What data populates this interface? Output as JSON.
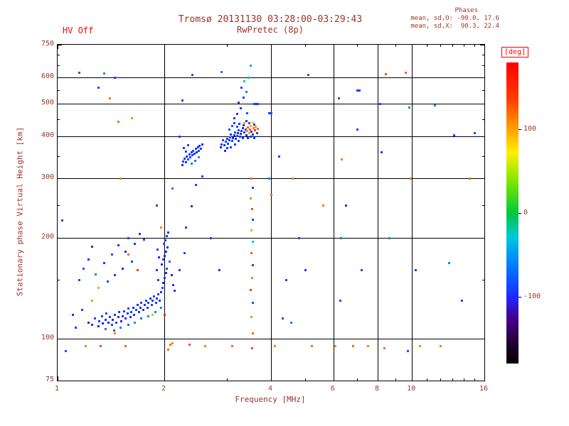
{
  "header": {
    "hv_label": "HV Off",
    "phases": {
      "heading": "Phases",
      "line_o": "mean, sd,O: -90.0, 17.6",
      "line_x": "mean, sd,X:  90.3, 22.4"
    }
  },
  "colors": {
    "background": "#ffffff",
    "grid": "#000000",
    "title_text": "#9a3428",
    "hv_text": "#ff0000",
    "deg_label": "#ff0000"
  },
  "chart_data": {
    "type": "scatter",
    "title": "Tromsø 20131130 03:28:00-03:29:43",
    "subtitle": "RwPretec (8p)",
    "xlabel": "Frequency [MHz]",
    "ylabel": "Stationary phase Virtual Height [km]",
    "x_scale": "log",
    "x_range": [
      1,
      16
    ],
    "x_tick_labels": [
      1,
      2,
      4,
      6,
      8,
      10,
      16
    ],
    "x_gridlines": [
      2,
      4,
      6,
      8,
      10
    ],
    "y_scale": "log",
    "y_range": [
      75,
      750
    ],
    "y_tick_labels": [
      750,
      600,
      500,
      400,
      300,
      200,
      100,
      75
    ],
    "y_gridlines": [
      100,
      200,
      300,
      400,
      500,
      600
    ],
    "grid": true,
    "color_scale": {
      "label": "[deg]",
      "min": -180,
      "max": 180,
      "ticks": [
        100,
        0,
        -100
      ],
      "colormap": [
        [
          0.0,
          "#000000"
        ],
        [
          0.08,
          "#28003c"
        ],
        [
          0.15,
          "#46008c"
        ],
        [
          0.22,
          "#1e28ff"
        ],
        [
          0.32,
          "#0078ff"
        ],
        [
          0.42,
          "#00c8dc"
        ],
        [
          0.5,
          "#00c83c"
        ],
        [
          0.6,
          "#78e600"
        ],
        [
          0.7,
          "#fff000"
        ],
        [
          0.78,
          "#ffa000"
        ],
        [
          0.88,
          "#ff3c00"
        ],
        [
          1.0,
          "#ff0000"
        ]
      ]
    },
    "point_format": [
      "frequency_MHz",
      "virtual_height_km",
      "phase_deg"
    ],
    "points": [
      [
        1.22,
        112,
        -100
      ],
      [
        1.25,
        110,
        -95
      ],
      [
        1.27,
        115,
        -88
      ],
      [
        1.3,
        109,
        -102
      ],
      [
        1.31,
        113,
        -92
      ],
      [
        1.33,
        117,
        -85
      ],
      [
        1.34,
        111,
        -108
      ],
      [
        1.36,
        114,
        -96
      ],
      [
        1.37,
        119,
        -90
      ],
      [
        1.39,
        112,
        -100
      ],
      [
        1.4,
        116,
        -94
      ],
      [
        1.42,
        110,
        -86
      ],
      [
        1.43,
        114,
        -103
      ],
      [
        1.45,
        118,
        -95
      ],
      [
        1.46,
        112,
        -89
      ],
      [
        1.48,
        116,
        -99
      ],
      [
        1.49,
        120,
        -92
      ],
      [
        1.51,
        113,
        -105
      ],
      [
        1.52,
        117,
        -96
      ],
      [
        1.54,
        121,
        -88
      ],
      [
        1.55,
        115,
        -100
      ],
      [
        1.57,
        119,
        -93
      ],
      [
        1.58,
        123,
        -86
      ],
      [
        1.6,
        116,
        -98
      ],
      [
        1.61,
        120,
        -91
      ],
      [
        1.63,
        124,
        -103
      ],
      [
        1.64,
        118,
        -95
      ],
      [
        1.66,
        122,
        -88
      ],
      [
        1.68,
        126,
        -97
      ],
      [
        1.69,
        120,
        -92
      ],
      [
        1.71,
        124,
        -100
      ],
      [
        1.72,
        128,
        -87
      ],
      [
        1.74,
        122,
        -94
      ],
      [
        1.76,
        126,
        -99
      ],
      [
        1.77,
        130,
        -90
      ],
      [
        1.79,
        124,
        -96
      ],
      [
        1.8,
        128,
        -89
      ],
      [
        1.82,
        132,
        -101
      ],
      [
        1.84,
        126,
        -93
      ],
      [
        1.85,
        130,
        -98
      ],
      [
        1.87,
        134,
        -91
      ],
      [
        1.89,
        128,
        -95
      ],
      [
        1.9,
        132,
        -100
      ],
      [
        1.92,
        136,
        -88
      ],
      [
        1.94,
        130,
        -97
      ],
      [
        1.5,
        108,
        -60
      ],
      [
        1.58,
        110,
        -70
      ],
      [
        1.65,
        112,
        -55
      ],
      [
        1.72,
        115,
        -65
      ],
      [
        1.8,
        117,
        -58
      ],
      [
        1.88,
        120,
        -62
      ],
      [
        1.95,
        124,
        -55
      ],
      [
        1.44,
        106,
        -75
      ],
      [
        1.36,
        107,
        -68
      ],
      [
        1.95,
        138,
        -95
      ],
      [
        1.97,
        142,
        -88
      ],
      [
        1.98,
        147,
        -100
      ],
      [
        2.0,
        152,
        -92
      ],
      [
        2.02,
        157,
        -96
      ],
      [
        2.03,
        162,
        -85
      ],
      [
        1.96,
        167,
        -98
      ],
      [
        1.98,
        172,
        -90
      ],
      [
        2.0,
        177,
        -102
      ],
      [
        2.02,
        182,
        -94
      ],
      [
        2.04,
        187,
        -97
      ],
      [
        1.99,
        192,
        -89
      ],
      [
        2.01,
        197,
        -101
      ],
      [
        2.03,
        202,
        -93
      ],
      [
        2.05,
        207,
        -96
      ],
      [
        2.07,
        170,
        -70
      ],
      [
        2.09,
        155,
        -105
      ],
      [
        2.11,
        145,
        -92
      ],
      [
        2.13,
        139,
        -99
      ],
      [
        1.92,
        150,
        -90
      ],
      [
        1.9,
        160,
        -95
      ],
      [
        1.93,
        175,
        -100
      ],
      [
        1.91,
        185,
        -88
      ],
      [
        1.12,
        108,
        -95
      ],
      [
        1.15,
        150,
        -90
      ],
      [
        1.18,
        162,
        -85
      ],
      [
        1.22,
        172,
        -95
      ],
      [
        1.25,
        188,
        -100
      ],
      [
        1.17,
        122,
        -88
      ],
      [
        1.1,
        118,
        -100
      ],
      [
        1.28,
        156,
        -60
      ],
      [
        1.35,
        168,
        -92
      ],
      [
        1.42,
        178,
        -85
      ],
      [
        1.48,
        190,
        -95
      ],
      [
        1.55,
        182,
        -100
      ],
      [
        1.62,
        170,
        -90
      ],
      [
        1.58,
        200,
        -88
      ],
      [
        1.65,
        192,
        -96
      ],
      [
        1.7,
        205,
        -92
      ],
      [
        1.75,
        198,
        -85
      ],
      [
        1.52,
        162,
        -100
      ],
      [
        1.45,
        155,
        -94
      ],
      [
        1.38,
        148,
        -89
      ],
      [
        1.32,
        95,
        130
      ],
      [
        1.45,
        104,
        110
      ],
      [
        1.58,
        178,
        120
      ],
      [
        1.3,
        142,
        100
      ],
      [
        1.68,
        160,
        140
      ],
      [
        1.85,
        118,
        95
      ],
      [
        2.0,
        118,
        150
      ],
      [
        1.25,
        130,
        105
      ],
      [
        2.08,
        96,
        120
      ],
      [
        1.95,
        215,
        110
      ],
      [
        2.24,
        330,
        -95
      ],
      [
        2.26,
        338,
        -88
      ],
      [
        2.28,
        345,
        -100
      ],
      [
        2.3,
        336,
        -92
      ],
      [
        2.31,
        350,
        -96
      ],
      [
        2.33,
        342,
        -85
      ],
      [
        2.35,
        355,
        -98
      ],
      [
        2.36,
        347,
        -90
      ],
      [
        2.38,
        360,
        -102
      ],
      [
        2.4,
        352,
        -94
      ],
      [
        2.41,
        364,
        -87
      ],
      [
        2.43,
        356,
        -99
      ],
      [
        2.45,
        368,
        -91
      ],
      [
        2.46,
        360,
        -103
      ],
      [
        2.48,
        372,
        -95
      ],
      [
        2.5,
        364,
        -88
      ],
      [
        2.51,
        376,
        -97
      ],
      [
        2.53,
        368,
        -92
      ],
      [
        2.55,
        380,
        -100
      ],
      [
        2.38,
        332,
        -60
      ],
      [
        2.44,
        340,
        -70
      ],
      [
        2.5,
        348,
        -55
      ],
      [
        2.3,
        362,
        -90
      ],
      [
        2.27,
        370,
        -95
      ],
      [
        2.33,
        378,
        -88
      ],
      [
        2.95,
        378,
        -95
      ],
      [
        2.98,
        386,
        -88
      ],
      [
        3.0,
        394,
        -100
      ],
      [
        3.02,
        382,
        -92
      ],
      [
        3.04,
        390,
        -96
      ],
      [
        3.06,
        398,
        -85
      ],
      [
        3.08,
        406,
        -98
      ],
      [
        3.1,
        388,
        -90
      ],
      [
        3.12,
        396,
        -102
      ],
      [
        3.14,
        404,
        -94
      ],
      [
        3.16,
        412,
        -87
      ],
      [
        3.18,
        394,
        -99
      ],
      [
        3.2,
        402,
        -91
      ],
      [
        3.22,
        410,
        -103
      ],
      [
        3.24,
        418,
        -95
      ],
      [
        3.26,
        400,
        -88
      ],
      [
        3.28,
        408,
        -97
      ],
      [
        3.3,
        416,
        -92
      ],
      [
        3.32,
        424,
        -100
      ],
      [
        3.05,
        420,
        -80
      ],
      [
        3.1,
        430,
        -75
      ],
      [
        3.15,
        438,
        -90
      ],
      [
        3.2,
        428,
        -85
      ],
      [
        3.25,
        436,
        -95
      ],
      [
        3.0,
        370,
        -93
      ],
      [
        2.96,
        364,
        -100
      ],
      [
        3.08,
        372,
        -89
      ],
      [
        3.16,
        380,
        -96
      ],
      [
        3.24,
        388,
        -91
      ],
      [
        3.32,
        396,
        -98
      ],
      [
        2.9,
        380,
        -94
      ],
      [
        2.92,
        390,
        -87
      ],
      [
        2.88,
        372,
        -101
      ],
      [
        3.36,
        412,
        -95
      ],
      [
        3.38,
        420,
        -88
      ],
      [
        3.4,
        404,
        -100
      ],
      [
        3.42,
        416,
        110
      ],
      [
        3.44,
        426,
        120
      ],
      [
        3.46,
        410,
        100
      ],
      [
        3.48,
        420,
        130
      ],
      [
        3.5,
        430,
        95
      ],
      [
        3.52,
        414,
        -92
      ],
      [
        3.54,
        406,
        -96
      ],
      [
        3.56,
        424,
        115
      ],
      [
        3.58,
        434,
        -90
      ],
      [
        3.6,
        418,
        140
      ],
      [
        3.62,
        428,
        105
      ],
      [
        3.55,
        442,
        85
      ],
      [
        3.46,
        438,
        -85
      ],
      [
        3.4,
        446,
        -95
      ],
      [
        3.34,
        432,
        -90
      ],
      [
        3.36,
        440,
        100
      ],
      [
        3.5,
        400,
        -98
      ],
      [
        3.58,
        396,
        -92
      ],
      [
        3.64,
        410,
        -88
      ],
      [
        3.66,
        422,
        120
      ],
      [
        3.44,
        396,
        -94
      ],
      [
        3.2,
        468,
        -90
      ],
      [
        3.28,
        486,
        -95
      ],
      [
        3.24,
        505,
        -88
      ],
      [
        3.34,
        522,
        -92
      ],
      [
        3.4,
        545,
        -60
      ],
      [
        3.35,
        585,
        -20
      ],
      [
        3.45,
        600,
        -30
      ],
      [
        3.3,
        560,
        -90
      ],
      [
        3.15,
        455,
        -96
      ],
      [
        3.42,
        470,
        -85
      ],
      [
        3.5,
        650,
        -40
      ],
      [
        2.9,
        622,
        -60
      ],
      [
        3.52,
        300,
        120
      ],
      [
        3.54,
        282,
        -90
      ],
      [
        3.5,
        262,
        110
      ],
      [
        3.53,
        244,
        130
      ],
      [
        3.55,
        226,
        -85
      ],
      [
        3.51,
        210,
        100
      ],
      [
        3.54,
        195,
        -30
      ],
      [
        3.52,
        180,
        125
      ],
      [
        3.55,
        166,
        -90
      ],
      [
        3.53,
        152,
        115
      ],
      [
        3.5,
        140,
        135
      ],
      [
        3.54,
        128,
        -80
      ],
      [
        3.52,
        116,
        105
      ],
      [
        3.55,
        104,
        120
      ],
      [
        3.53,
        94,
        130
      ],
      [
        2.05,
        93,
        120
      ],
      [
        2.1,
        97,
        110
      ],
      [
        2.3,
        215,
        -90
      ],
      [
        2.38,
        248,
        -95
      ],
      [
        2.45,
        288,
        -88
      ],
      [
        2.55,
        305,
        -92
      ],
      [
        2.35,
        96,
        130
      ],
      [
        2.6,
        95,
        115
      ],
      [
        2.28,
        180,
        -85
      ],
      [
        2.2,
        160,
        -95
      ],
      [
        4.0,
        268,
        120
      ],
      [
        3.95,
        300,
        -60
      ],
      [
        4.1,
        95,
        115
      ],
      [
        4.3,
        115,
        -85
      ],
      [
        4.55,
        112,
        -60
      ],
      [
        4.4,
        150,
        -90
      ],
      [
        5.08,
        612,
        -75
      ],
      [
        4.2,
        350,
        -90
      ],
      [
        4.6,
        300,
        110
      ],
      [
        5.0,
        160,
        -95
      ],
      [
        5.2,
        95,
        120
      ],
      [
        4.8,
        200,
        -88
      ],
      [
        6.2,
        520,
        -80
      ],
      [
        6.32,
        342,
        115
      ],
      [
        6.28,
        200,
        -60
      ],
      [
        6.25,
        130,
        -90
      ],
      [
        6.05,
        95,
        110
      ],
      [
        6.5,
        250,
        -95
      ],
      [
        7.2,
        160,
        -90
      ],
      [
        7.5,
        95,
        115
      ],
      [
        8.2,
        360,
        -92
      ],
      [
        8.35,
        94,
        120
      ],
      [
        8.1,
        500,
        -85
      ],
      [
        8.6,
        200,
        -60
      ],
      [
        9.6,
        620,
        125
      ],
      [
        9.8,
        488,
        -55
      ],
      [
        9.9,
        300,
        115
      ],
      [
        10.2,
        160,
        -90
      ],
      [
        9.7,
        92,
        -85
      ],
      [
        10.5,
        95,
        110
      ],
      [
        11.6,
        495,
        -55
      ],
      [
        12.7,
        168,
        -60
      ],
      [
        13.1,
        405,
        -88
      ],
      [
        14.5,
        300,
        120
      ],
      [
        12.0,
        95,
        115
      ],
      [
        13.8,
        130,
        -90
      ],
      [
        15.0,
        410,
        -85
      ],
      [
        6.8,
        95,
        125
      ],
      [
        7.0,
        420,
        -90
      ],
      [
        5.6,
        250,
        115
      ],
      [
        8.4,
        615,
        130
      ],
      [
        1.03,
        225,
        -90
      ],
      [
        1.05,
        92,
        -85
      ],
      [
        1.15,
        620,
        -80
      ],
      [
        1.35,
        618,
        -55
      ],
      [
        1.4,
        520,
        115
      ],
      [
        1.48,
        443,
        120
      ],
      [
        1.3,
        560,
        -90
      ],
      [
        1.2,
        95,
        110
      ],
      [
        1.62,
        455,
        105
      ],
      [
        1.55,
        95,
        125
      ],
      [
        2.25,
        512,
        -88
      ],
      [
        2.4,
        612,
        -80
      ],
      [
        2.7,
        200,
        -90
      ],
      [
        2.85,
        160,
        -95
      ],
      [
        3.1,
        95,
        120
      ],
      [
        1.9,
        250,
        -90
      ],
      [
        2.1,
        280,
        -60
      ],
      [
        1.5,
        300,
        115
      ],
      [
        2.2,
        400,
        -92
      ],
      [
        1.45,
        600,
        -90
      ],
      [
        3.58,
        500,
        -90
      ],
      [
        3.62,
        500,
        -88
      ],
      [
        3.66,
        500,
        -92
      ],
      [
        3.95,
        470,
        -90
      ],
      [
        4.0,
        470,
        -85
      ],
      [
        7.0,
        550,
        -90
      ],
      [
        7.1,
        550,
        -88
      ]
    ]
  }
}
